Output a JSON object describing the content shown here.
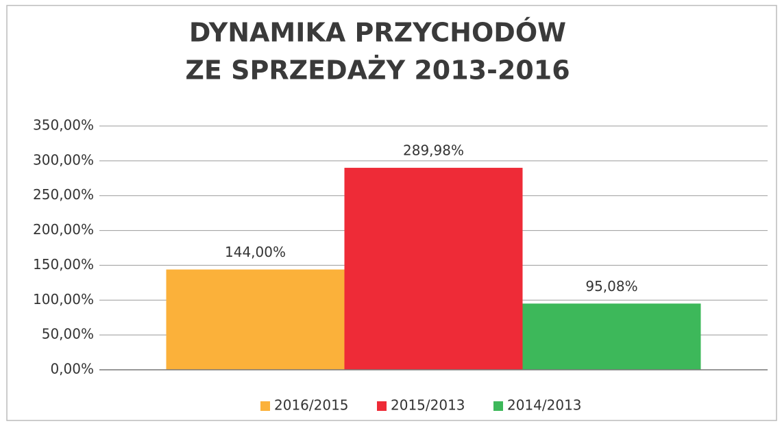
{
  "chart_data": {
    "type": "bar",
    "title": [
      "DYNAMIKA PRZYCHODÓW",
      "ZE SPRZEDAŻY 2013-2016"
    ],
    "categories": [
      null
    ],
    "series": [
      {
        "name": "2016/2015",
        "color": "#fbb13a",
        "values": [
          144
        ],
        "value_labels": [
          "144,00%"
        ]
      },
      {
        "name": "2015/2013",
        "color": "#ee2b37",
        "values": [
          289.98
        ],
        "value_labels": [
          "289,98%"
        ]
      },
      {
        "name": "2014/2013",
        "color": "#3db85a",
        "values": [
          95.08
        ],
        "value_labels": [
          "95,08%"
        ]
      }
    ],
    "ylim": [
      0,
      350
    ],
    "yticks": [
      {
        "value": 0,
        "label": "0,00%"
      },
      {
        "value": 50,
        "label": "50,00%"
      },
      {
        "value": 100,
        "label": "100,00%"
      },
      {
        "value": 150,
        "label": "150,00%"
      },
      {
        "value": 200,
        "label": "200,00%"
      },
      {
        "value": 250,
        "label": "250,00%"
      },
      {
        "value": 300,
        "label": "300,00%"
      },
      {
        "value": 350,
        "label": "350,00%"
      }
    ],
    "grid": true,
    "legend": "bottom"
  }
}
